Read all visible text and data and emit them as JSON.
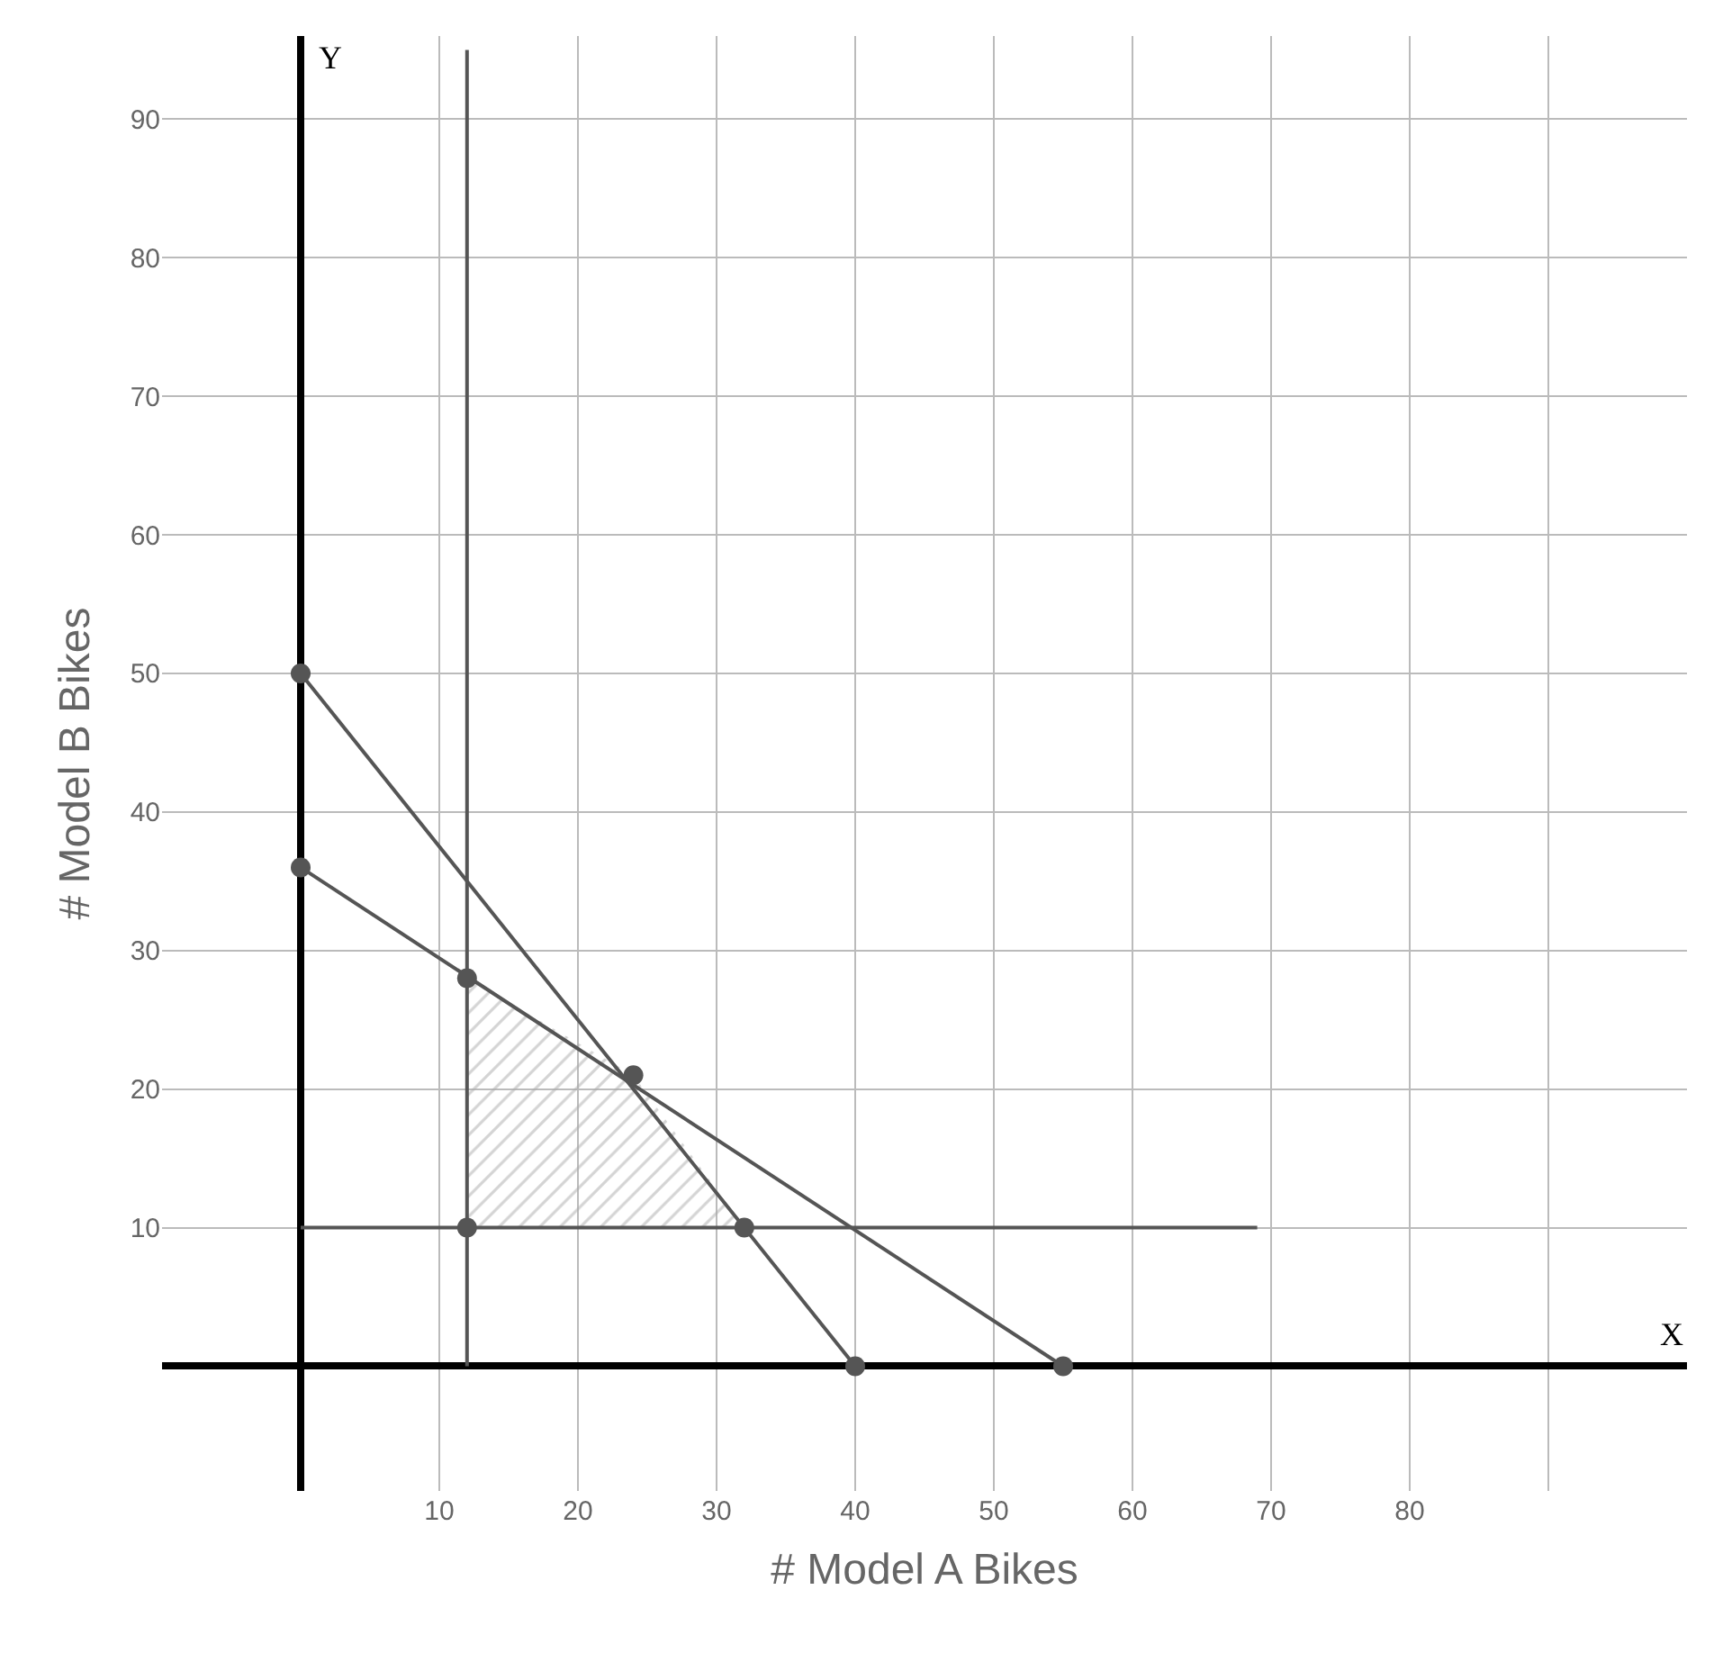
{
  "chart_data": {
    "type": "line",
    "xlabel": "# Model A Bikes",
    "ylabel": "# Model B Bikes",
    "annotations": [
      "X",
      "Y"
    ],
    "xlim": [
      -10,
      100
    ],
    "ylim": [
      -9,
      96
    ],
    "xticks": [
      10,
      20,
      30,
      40,
      50,
      60,
      70,
      80,
      {
        "value": 90,
        "label": null
      }
    ],
    "yticks": [
      10,
      20,
      30,
      40,
      50,
      60,
      70,
      80,
      90
    ],
    "grid": true,
    "marker": "none",
    "line_style": "solid",
    "series": [
      {
        "type": "area",
        "color": "#aaaaaa",
        "x": [
          12,
          24,
          32,
          12
        ],
        "values": [
          28,
          21,
          10,
          10
        ]
      },
      {
        "color": "#555555",
        "x": [
          0,
          40
        ],
        "values": [
          50,
          0
        ]
      },
      {
        "color": "#555555",
        "x": [
          0,
          55
        ],
        "values": [
          36,
          0
        ]
      },
      {
        "color": "#555555",
        "x": [
          12,
          12
        ],
        "values": [
          0,
          95
        ]
      },
      {
        "color": "#555555",
        "x": [
          0,
          69
        ],
        "values": [
          10,
          10
        ]
      },
      {
        "type": "scatter",
        "color": "#555555",
        "marker": "circle",
        "x": [
          0,
          0,
          12,
          12,
          24,
          32,
          40,
          55
        ],
        "values": [
          50,
          36,
          28,
          10,
          21,
          10,
          0,
          0
        ]
      }
    ]
  }
}
